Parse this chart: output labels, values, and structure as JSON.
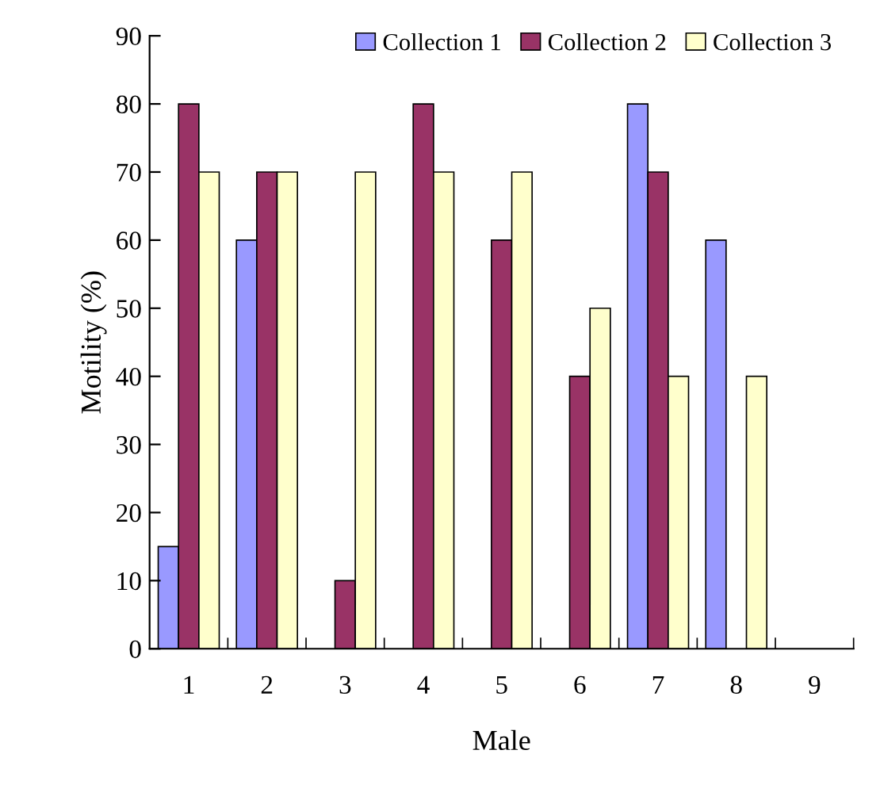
{
  "chart_data": {
    "type": "bar",
    "xlabel": "Male",
    "ylabel": "Motility (%)",
    "categories": [
      "1",
      "2",
      "3",
      "4",
      "5",
      "6",
      "7",
      "8",
      "9"
    ],
    "series": [
      {
        "name": "Collection 1",
        "color": "#9999ff",
        "values": [
          15,
          60,
          null,
          null,
          null,
          null,
          80,
          60,
          null
        ]
      },
      {
        "name": "Collection 2",
        "color": "#993366",
        "values": [
          80,
          70,
          10,
          80,
          60,
          40,
          70,
          null,
          null
        ]
      },
      {
        "name": "Collection 3",
        "color": "#ffffcc",
        "values": [
          70,
          70,
          70,
          70,
          70,
          50,
          40,
          40,
          null
        ]
      }
    ],
    "ylim": [
      0,
      90
    ],
    "yticks": [
      0,
      10,
      20,
      30,
      40,
      50,
      60,
      70,
      80,
      90
    ],
    "grid": false,
    "legend": "top right"
  }
}
